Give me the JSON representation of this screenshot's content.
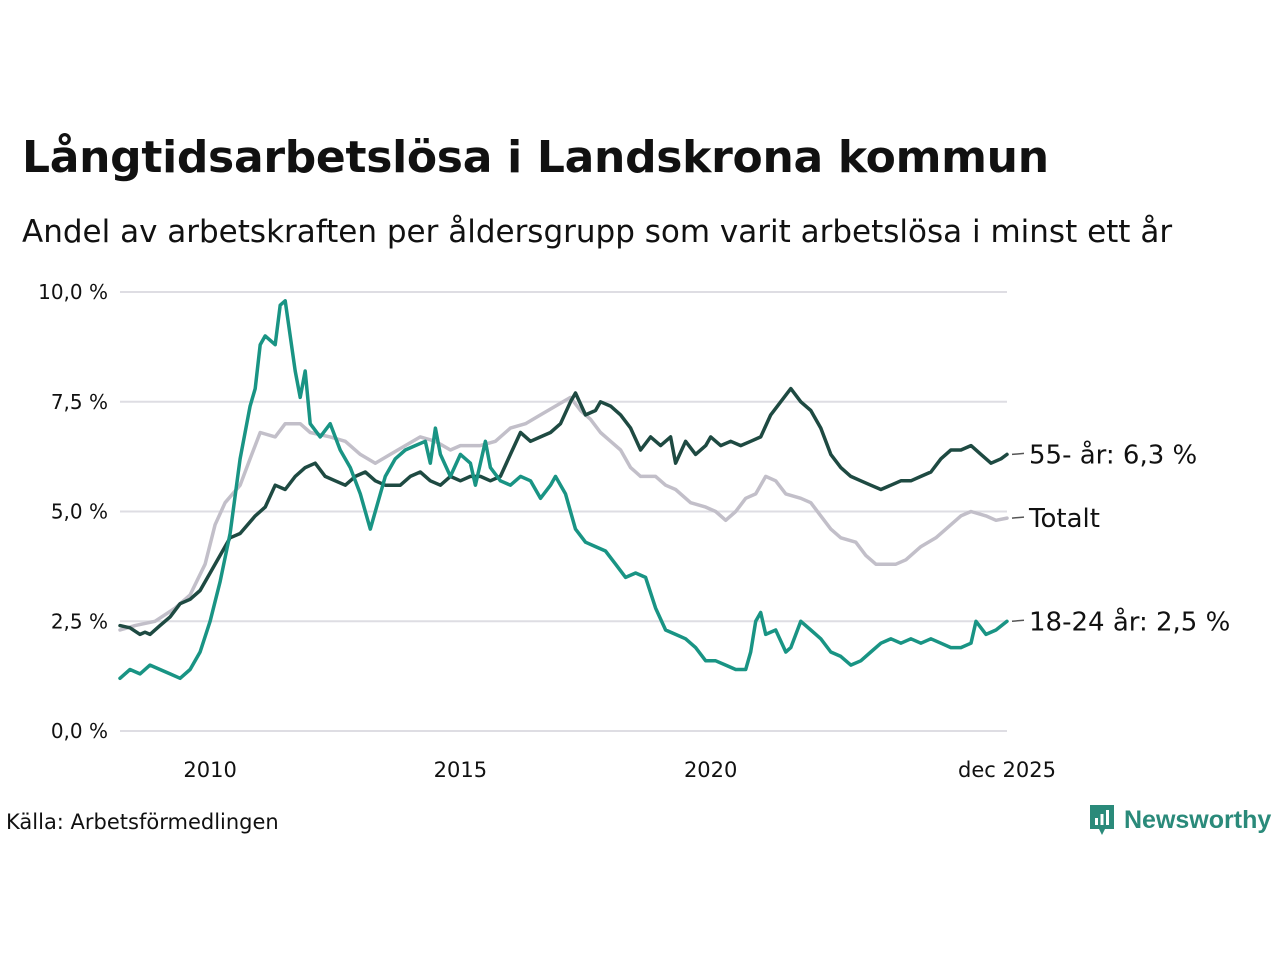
{
  "title": "Långtidsarbetslösa i Landskrona kommun",
  "subtitle": "Andel av arbetskraften per åldersgrupp som varit arbetslösa i minst ett år",
  "source": "Källa: Arbetsförmedlingen",
  "brand": "Newsworthy",
  "colors": {
    "total": "#c2bfc9",
    "age55": "#1e4a42",
    "age18": "#199484",
    "grid": "#dedde3",
    "brand": "#2a8a7a"
  },
  "chart_data": {
    "type": "line",
    "title": "Långtidsarbetslösa i Landskrona kommun",
    "ylabel": "",
    "xlabel": "",
    "ylim": [
      0,
      10
    ],
    "xlim": [
      2008.2,
      2025.92
    ],
    "y_ticks": [
      {
        "v": 0,
        "label": "0,0 %"
      },
      {
        "v": 2.5,
        "label": "2,5 %"
      },
      {
        "v": 5,
        "label": "5,0 %"
      },
      {
        "v": 7.5,
        "label": "7,5 %"
      },
      {
        "v": 10,
        "label": "10,0 %"
      }
    ],
    "x_ticks": [
      {
        "v": 2010,
        "label": "2010"
      },
      {
        "v": 2015,
        "label": "2015"
      },
      {
        "v": 2020,
        "label": "2020"
      },
      {
        "v": 2025.92,
        "label": "dec 2025"
      }
    ],
    "series": [
      {
        "name": "Totalt",
        "label": "Totalt",
        "color_key": "total",
        "points": [
          [
            2008.2,
            2.3
          ],
          [
            2008.5,
            2.4
          ],
          [
            2008.9,
            2.5
          ],
          [
            2009.3,
            2.8
          ],
          [
            2009.6,
            3.1
          ],
          [
            2009.9,
            3.8
          ],
          [
            2010.1,
            4.7
          ],
          [
            2010.3,
            5.2
          ],
          [
            2010.6,
            5.6
          ],
          [
            2010.8,
            6.2
          ],
          [
            2011.0,
            6.8
          ],
          [
            2011.3,
            6.7
          ],
          [
            2011.5,
            7.0
          ],
          [
            2011.8,
            7.0
          ],
          [
            2012.0,
            6.8
          ],
          [
            2012.4,
            6.7
          ],
          [
            2012.7,
            6.6
          ],
          [
            2013.0,
            6.3
          ],
          [
            2013.3,
            6.1
          ],
          [
            2013.6,
            6.3
          ],
          [
            2013.9,
            6.5
          ],
          [
            2014.2,
            6.7
          ],
          [
            2014.5,
            6.6
          ],
          [
            2014.8,
            6.4
          ],
          [
            2015.0,
            6.5
          ],
          [
            2015.4,
            6.5
          ],
          [
            2015.7,
            6.6
          ],
          [
            2016.0,
            6.9
          ],
          [
            2016.3,
            7.0
          ],
          [
            2016.6,
            7.2
          ],
          [
            2016.9,
            7.4
          ],
          [
            2017.2,
            7.6
          ],
          [
            2017.4,
            7.3
          ],
          [
            2017.6,
            7.1
          ],
          [
            2017.8,
            6.8
          ],
          [
            2018.0,
            6.6
          ],
          [
            2018.2,
            6.4
          ],
          [
            2018.4,
            6.0
          ],
          [
            2018.6,
            5.8
          ],
          [
            2018.9,
            5.8
          ],
          [
            2019.1,
            5.6
          ],
          [
            2019.3,
            5.5
          ],
          [
            2019.6,
            5.2
          ],
          [
            2019.9,
            5.1
          ],
          [
            2020.1,
            5.0
          ],
          [
            2020.3,
            4.8
          ],
          [
            2020.5,
            5.0
          ],
          [
            2020.7,
            5.3
          ],
          [
            2020.9,
            5.4
          ],
          [
            2021.1,
            5.8
          ],
          [
            2021.3,
            5.7
          ],
          [
            2021.5,
            5.4
          ],
          [
            2021.8,
            5.3
          ],
          [
            2022.0,
            5.2
          ],
          [
            2022.2,
            4.9
          ],
          [
            2022.4,
            4.6
          ],
          [
            2022.6,
            4.4
          ],
          [
            2022.9,
            4.3
          ],
          [
            2023.1,
            4.0
          ],
          [
            2023.3,
            3.8
          ],
          [
            2023.7,
            3.8
          ],
          [
            2023.9,
            3.9
          ],
          [
            2024.2,
            4.2
          ],
          [
            2024.5,
            4.4
          ],
          [
            2024.8,
            4.7
          ],
          [
            2025.0,
            4.9
          ],
          [
            2025.2,
            5.0
          ],
          [
            2025.5,
            4.9
          ],
          [
            2025.7,
            4.8
          ],
          [
            2025.92,
            4.85
          ]
        ]
      },
      {
        "name": "55- år",
        "label": "55- år: 6,3 %",
        "color_key": "age55",
        "points": [
          [
            2008.2,
            2.4
          ],
          [
            2008.4,
            2.35
          ],
          [
            2008.6,
            2.2
          ],
          [
            2008.7,
            2.25
          ],
          [
            2008.8,
            2.2
          ],
          [
            2009.0,
            2.4
          ],
          [
            2009.2,
            2.6
          ],
          [
            2009.4,
            2.9
          ],
          [
            2009.6,
            3.0
          ],
          [
            2009.8,
            3.2
          ],
          [
            2010.0,
            3.6
          ],
          [
            2010.2,
            4.0
          ],
          [
            2010.4,
            4.4
          ],
          [
            2010.6,
            4.5
          ],
          [
            2010.9,
            4.9
          ],
          [
            2011.1,
            5.1
          ],
          [
            2011.3,
            5.6
          ],
          [
            2011.5,
            5.5
          ],
          [
            2011.7,
            5.8
          ],
          [
            2011.9,
            6.0
          ],
          [
            2012.1,
            6.1
          ],
          [
            2012.3,
            5.8
          ],
          [
            2012.5,
            5.7
          ],
          [
            2012.7,
            5.6
          ],
          [
            2012.9,
            5.8
          ],
          [
            2013.1,
            5.9
          ],
          [
            2013.3,
            5.7
          ],
          [
            2013.5,
            5.6
          ],
          [
            2013.8,
            5.6
          ],
          [
            2014.0,
            5.8
          ],
          [
            2014.2,
            5.9
          ],
          [
            2014.4,
            5.7
          ],
          [
            2014.6,
            5.6
          ],
          [
            2014.8,
            5.8
          ],
          [
            2015.0,
            5.7
          ],
          [
            2015.2,
            5.8
          ],
          [
            2015.4,
            5.8
          ],
          [
            2015.6,
            5.7
          ],
          [
            2015.8,
            5.8
          ],
          [
            2016.0,
            6.3
          ],
          [
            2016.2,
            6.8
          ],
          [
            2016.4,
            6.6
          ],
          [
            2016.6,
            6.7
          ],
          [
            2016.8,
            6.8
          ],
          [
            2017.0,
            7.0
          ],
          [
            2017.2,
            7.5
          ],
          [
            2017.3,
            7.7
          ],
          [
            2017.5,
            7.2
          ],
          [
            2017.7,
            7.3
          ],
          [
            2017.8,
            7.5
          ],
          [
            2018.0,
            7.4
          ],
          [
            2018.2,
            7.2
          ],
          [
            2018.4,
            6.9
          ],
          [
            2018.6,
            6.4
          ],
          [
            2018.8,
            6.7
          ],
          [
            2019.0,
            6.5
          ],
          [
            2019.2,
            6.7
          ],
          [
            2019.3,
            6.1
          ],
          [
            2019.5,
            6.6
          ],
          [
            2019.7,
            6.3
          ],
          [
            2019.9,
            6.5
          ],
          [
            2020.0,
            6.7
          ],
          [
            2020.2,
            6.5
          ],
          [
            2020.4,
            6.6
          ],
          [
            2020.6,
            6.5
          ],
          [
            2020.8,
            6.6
          ],
          [
            2021.0,
            6.7
          ],
          [
            2021.2,
            7.2
          ],
          [
            2021.4,
            7.5
          ],
          [
            2021.6,
            7.8
          ],
          [
            2021.8,
            7.5
          ],
          [
            2022.0,
            7.3
          ],
          [
            2022.2,
            6.9
          ],
          [
            2022.4,
            6.3
          ],
          [
            2022.6,
            6.0
          ],
          [
            2022.8,
            5.8
          ],
          [
            2023.0,
            5.7
          ],
          [
            2023.2,
            5.6
          ],
          [
            2023.4,
            5.5
          ],
          [
            2023.6,
            5.6
          ],
          [
            2023.8,
            5.7
          ],
          [
            2024.0,
            5.7
          ],
          [
            2024.2,
            5.8
          ],
          [
            2024.4,
            5.9
          ],
          [
            2024.6,
            6.2
          ],
          [
            2024.8,
            6.4
          ],
          [
            2025.0,
            6.4
          ],
          [
            2025.2,
            6.5
          ],
          [
            2025.4,
            6.3
          ],
          [
            2025.6,
            6.1
          ],
          [
            2025.8,
            6.2
          ],
          [
            2025.92,
            6.3
          ]
        ]
      },
      {
        "name": "18-24 år",
        "label": "18-24 år: 2,5 %",
        "color_key": "age18",
        "points": [
          [
            2008.2,
            1.2
          ],
          [
            2008.4,
            1.4
          ],
          [
            2008.6,
            1.3
          ],
          [
            2008.8,
            1.5
          ],
          [
            2009.0,
            1.4
          ],
          [
            2009.2,
            1.3
          ],
          [
            2009.4,
            1.2
          ],
          [
            2009.6,
            1.4
          ],
          [
            2009.8,
            1.8
          ],
          [
            2010.0,
            2.5
          ],
          [
            2010.2,
            3.4
          ],
          [
            2010.4,
            4.5
          ],
          [
            2010.6,
            6.2
          ],
          [
            2010.8,
            7.4
          ],
          [
            2010.9,
            7.8
          ],
          [
            2011.0,
            8.8
          ],
          [
            2011.1,
            9.0
          ],
          [
            2011.3,
            8.8
          ],
          [
            2011.4,
            9.7
          ],
          [
            2011.5,
            9.8
          ],
          [
            2011.6,
            9.0
          ],
          [
            2011.7,
            8.2
          ],
          [
            2011.8,
            7.6
          ],
          [
            2011.9,
            8.2
          ],
          [
            2012.0,
            7.0
          ],
          [
            2012.2,
            6.7
          ],
          [
            2012.4,
            7.0
          ],
          [
            2012.6,
            6.4
          ],
          [
            2012.8,
            6.0
          ],
          [
            2013.0,
            5.4
          ],
          [
            2013.2,
            4.6
          ],
          [
            2013.3,
            5.0
          ],
          [
            2013.5,
            5.8
          ],
          [
            2013.7,
            6.2
          ],
          [
            2013.9,
            6.4
          ],
          [
            2014.1,
            6.5
          ],
          [
            2014.3,
            6.6
          ],
          [
            2014.4,
            6.1
          ],
          [
            2014.5,
            6.9
          ],
          [
            2014.6,
            6.3
          ],
          [
            2014.8,
            5.8
          ],
          [
            2015.0,
            6.3
          ],
          [
            2015.2,
            6.1
          ],
          [
            2015.3,
            5.6
          ],
          [
            2015.5,
            6.6
          ],
          [
            2015.6,
            6.0
          ],
          [
            2015.8,
            5.7
          ],
          [
            2016.0,
            5.6
          ],
          [
            2016.2,
            5.8
          ],
          [
            2016.4,
            5.7
          ],
          [
            2016.6,
            5.3
          ],
          [
            2016.8,
            5.6
          ],
          [
            2016.9,
            5.8
          ],
          [
            2017.1,
            5.4
          ],
          [
            2017.3,
            4.6
          ],
          [
            2017.5,
            4.3
          ],
          [
            2017.7,
            4.2
          ],
          [
            2017.9,
            4.1
          ],
          [
            2018.1,
            3.8
          ],
          [
            2018.3,
            3.5
          ],
          [
            2018.5,
            3.6
          ],
          [
            2018.7,
            3.5
          ],
          [
            2018.9,
            2.8
          ],
          [
            2019.1,
            2.3
          ],
          [
            2019.3,
            2.2
          ],
          [
            2019.5,
            2.1
          ],
          [
            2019.7,
            1.9
          ],
          [
            2019.9,
            1.6
          ],
          [
            2020.1,
            1.6
          ],
          [
            2020.3,
            1.5
          ],
          [
            2020.5,
            1.4
          ],
          [
            2020.7,
            1.4
          ],
          [
            2020.8,
            1.8
          ],
          [
            2020.9,
            2.5
          ],
          [
            2021.0,
            2.7
          ],
          [
            2021.1,
            2.2
          ],
          [
            2021.3,
            2.3
          ],
          [
            2021.5,
            1.8
          ],
          [
            2021.6,
            1.9
          ],
          [
            2021.8,
            2.5
          ],
          [
            2022.0,
            2.3
          ],
          [
            2022.2,
            2.1
          ],
          [
            2022.4,
            1.8
          ],
          [
            2022.6,
            1.7
          ],
          [
            2022.8,
            1.5
          ],
          [
            2023.0,
            1.6
          ],
          [
            2023.2,
            1.8
          ],
          [
            2023.4,
            2.0
          ],
          [
            2023.6,
            2.1
          ],
          [
            2023.8,
            2.0
          ],
          [
            2024.0,
            2.1
          ],
          [
            2024.2,
            2.0
          ],
          [
            2024.4,
            2.1
          ],
          [
            2024.6,
            2.0
          ],
          [
            2024.8,
            1.9
          ],
          [
            2025.0,
            1.9
          ],
          [
            2025.2,
            2.0
          ],
          [
            2025.3,
            2.5
          ],
          [
            2025.5,
            2.2
          ],
          [
            2025.7,
            2.3
          ],
          [
            2025.92,
            2.5
          ]
        ]
      }
    ]
  }
}
